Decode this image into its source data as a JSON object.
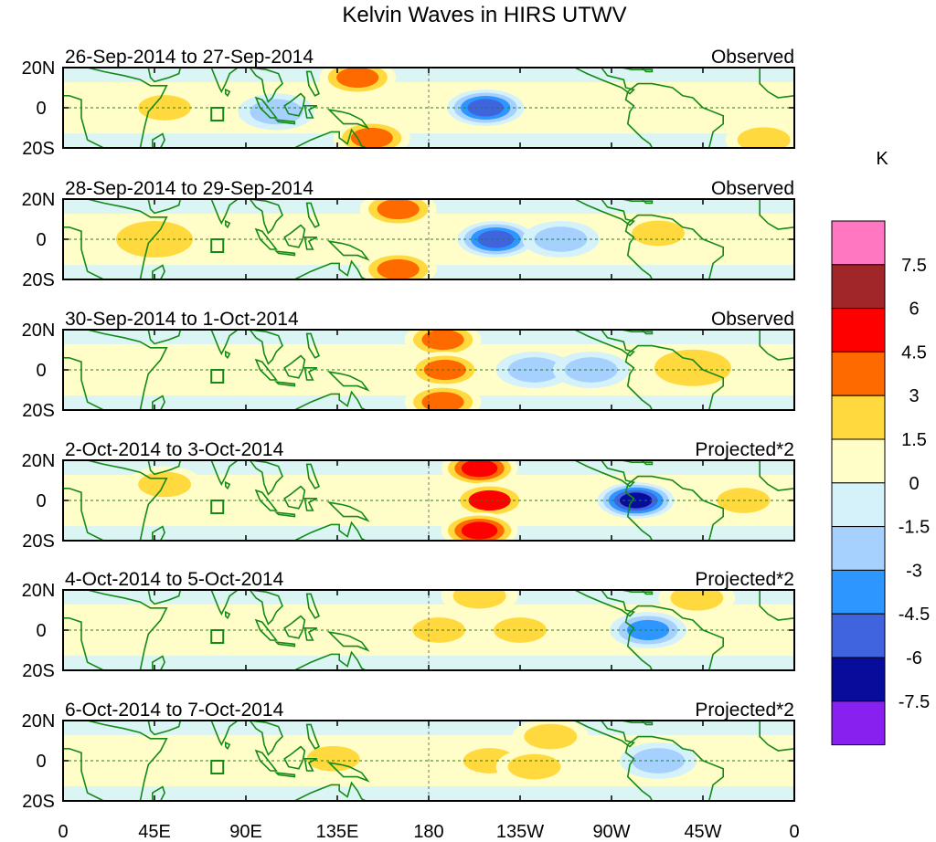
{
  "chart_data": {
    "type": "heatmap",
    "title": "Kelvin Waves in HIRS UTWV",
    "units": "K",
    "x_ticks": [
      "0",
      "45E",
      "90E",
      "135E",
      "180",
      "135W",
      "90W",
      "45W",
      "0"
    ],
    "y_ticks": [
      "20N",
      "0",
      "20S"
    ],
    "x_range_deg": [
      0,
      360
    ],
    "y_range_deg": [
      -20,
      20
    ],
    "colorbar": {
      "levels": [
        "7.5",
        "6",
        "4.5",
        "3",
        "1.5",
        "0",
        "-1.5",
        "-3",
        "-4.5",
        "-6",
        "-7.5"
      ],
      "colors": [
        "#ff77c0",
        "#a0262a",
        "#ff0000",
        "#ff6a00",
        "#ffd93d",
        "#fffdc8",
        "#d5f2fb",
        "#a6d1ff",
        "#2e96ff",
        "#3f64dd",
        "#070d9a",
        "#8820f0"
      ]
    },
    "panels": [
      {
        "date": "26-Sep-2014 to 27-Sep-2014",
        "label": "Observed",
        "anomalies": [
          {
            "lon": 145,
            "lat": 15,
            "value": 3.5
          },
          {
            "lon": 152,
            "lat": -15,
            "value": 3.4
          },
          {
            "lon": 208,
            "lat": 0,
            "value": -4.6
          },
          {
            "lon": 50,
            "lat": 0,
            "value": 2.0
          },
          {
            "lon": 105,
            "lat": -2,
            "value": -2.5
          },
          {
            "lon": 265,
            "lat": 0,
            "value": 1.3
          },
          {
            "lon": 345,
            "lat": -16,
            "value": 1.6
          }
        ]
      },
      {
        "date": "28-Sep-2014 to 29-Sep-2014",
        "label": "Observed",
        "anomalies": [
          {
            "lon": 165,
            "lat": 15,
            "value": 4.2
          },
          {
            "lon": 165,
            "lat": -15,
            "value": 4.0
          },
          {
            "lon": 213,
            "lat": 0,
            "value": -4.6
          },
          {
            "lon": 45,
            "lat": 0,
            "value": 1.5
          },
          {
            "lon": 245,
            "lat": 0,
            "value": -1.6
          },
          {
            "lon": 293,
            "lat": 3,
            "value": 1.6
          }
        ]
      },
      {
        "date": "30-Sep-2014 to 1-Oct-2014",
        "label": "Observed",
        "anomalies": [
          {
            "lon": 187,
            "lat": 15,
            "value": 3.4
          },
          {
            "lon": 188,
            "lat": 0,
            "value": 3.6
          },
          {
            "lon": 187,
            "lat": -16,
            "value": 3.4
          },
          {
            "lon": 232,
            "lat": 0,
            "value": -1.6
          },
          {
            "lon": 260,
            "lat": 0,
            "value": -1.6
          },
          {
            "lon": 310,
            "lat": 1,
            "value": 1.5
          }
        ]
      },
      {
        "date": "2-Oct-2014 to 3-Oct-2014",
        "label": "Projected*2",
        "anomalies": [
          {
            "lon": 205,
            "lat": 16,
            "value": 4.6
          },
          {
            "lon": 210,
            "lat": 0,
            "value": 4.5
          },
          {
            "lon": 205,
            "lat": -15,
            "value": 4.6
          },
          {
            "lon": 282,
            "lat": 0,
            "value": -6.2
          },
          {
            "lon": 50,
            "lat": 8,
            "value": 2.0
          },
          {
            "lon": 335,
            "lat": 0,
            "value": 1.6
          }
        ]
      },
      {
        "date": "4-Oct-2014 to 5-Oct-2014",
        "label": "Projected*2",
        "anomalies": [
          {
            "lon": 205,
            "lat": 17,
            "value": 1.7
          },
          {
            "lon": 185,
            "lat": 0,
            "value": 1.6
          },
          {
            "lon": 225,
            "lat": 0,
            "value": 1.6
          },
          {
            "lon": 288,
            "lat": 0,
            "value": -3.2
          },
          {
            "lon": 312,
            "lat": 16,
            "value": 1.6
          }
        ]
      },
      {
        "date": "6-Oct-2014 to 7-Oct-2014",
        "label": "Projected*2",
        "anomalies": [
          {
            "lon": 210,
            "lat": 0,
            "value": 2.5
          },
          {
            "lon": 232,
            "lat": -3,
            "value": 2.3
          },
          {
            "lon": 240,
            "lat": 12,
            "value": 1.6
          },
          {
            "lon": 293,
            "lat": 0,
            "value": -2.2
          },
          {
            "lon": 133,
            "lat": 1,
            "value": 1.8
          }
        ]
      }
    ]
  }
}
